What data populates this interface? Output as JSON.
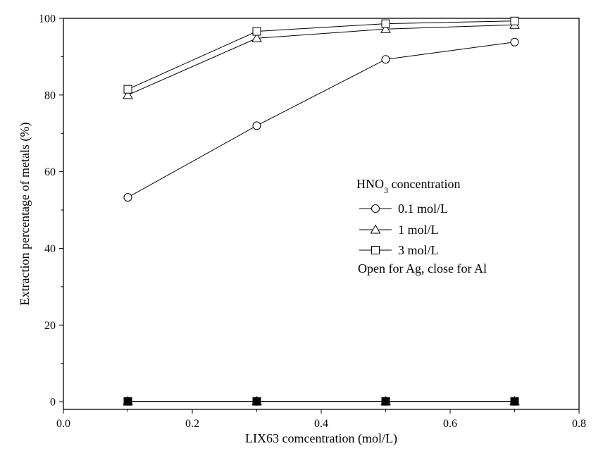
{
  "chart_data": {
    "type": "line",
    "title": "",
    "xlabel": "LIX63 comcentration (mol/L)",
    "ylabel": "Extraction percentage of metals (%)",
    "xlim": [
      0.0,
      0.8
    ],
    "ylim": [
      -2,
      100
    ],
    "x_ticks": [
      0.0,
      0.2,
      0.4,
      0.6,
      0.8
    ],
    "x_tick_labels": [
      "0.0",
      "0.2",
      "0.4",
      "0.6",
      "0.8"
    ],
    "y_ticks": [
      0,
      20,
      40,
      60,
      80,
      100
    ],
    "y_tick_labels": [
      "0",
      "20",
      "40",
      "60",
      "80",
      "100"
    ],
    "grid": false,
    "legend": {
      "placement": "right-center",
      "title_prefix": "HNO",
      "title_subscript": "3",
      "title_suffix": " concentration",
      "note": "Open for Ag, close for Al"
    },
    "x": [
      0.1,
      0.3,
      0.5,
      0.7
    ],
    "series": [
      {
        "name": "0.1 mol/L",
        "metal": "Ag",
        "marker": "circle",
        "filled": false,
        "values": [
          53.3,
          72.0,
          89.3,
          93.8
        ]
      },
      {
        "name": "1 mol/L",
        "metal": "Ag",
        "marker": "triangle",
        "filled": false,
        "values": [
          80.0,
          94.8,
          97.2,
          98.3
        ]
      },
      {
        "name": "3 mol/L",
        "metal": "Ag",
        "marker": "square",
        "filled": false,
        "values": [
          81.5,
          96.6,
          98.6,
          99.3
        ]
      },
      {
        "name": "0.1 mol/L",
        "metal": "Al",
        "marker": "circle",
        "filled": true,
        "values": [
          0.1,
          0.1,
          0.1,
          0.1
        ]
      },
      {
        "name": "1 mol/L",
        "metal": "Al",
        "marker": "triangle",
        "filled": true,
        "values": [
          0.1,
          0.1,
          0.1,
          0.1
        ]
      },
      {
        "name": "3 mol/L",
        "metal": "Al",
        "marker": "square",
        "filled": true,
        "values": [
          0.1,
          0.1,
          0.1,
          0.1
        ]
      }
    ]
  }
}
